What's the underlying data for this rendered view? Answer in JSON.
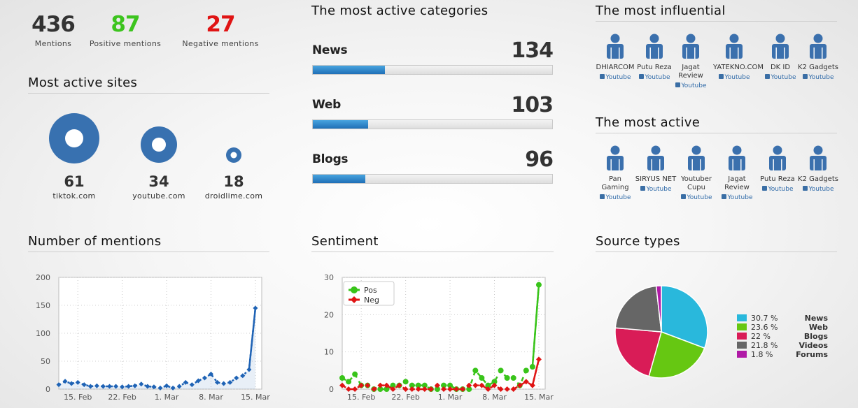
{
  "stats": [
    {
      "value": "436",
      "label": "Mentions",
      "color": "#333333"
    },
    {
      "value": "87",
      "label": "Positive mentions",
      "color": "#3cc41e"
    },
    {
      "value": "27",
      "label": "Negative mentions",
      "color": "#e01414"
    }
  ],
  "sites": {
    "title": "Most active sites",
    "items": [
      {
        "count": "61",
        "name": "tiktok.com"
      },
      {
        "count": "34",
        "name": "youtube.com"
      },
      {
        "count": "18",
        "name": "droidlime.com"
      }
    ]
  },
  "categories": {
    "title": "The most active categories",
    "items": [
      {
        "name": "News",
        "value": "134",
        "fill": 0.3
      },
      {
        "name": "Web",
        "value": "103",
        "fill": 0.23
      },
      {
        "name": "Blogs",
        "value": "96",
        "fill": 0.22
      }
    ]
  },
  "influential": {
    "title": "The most influential",
    "people": [
      {
        "name": "DHIARCOM",
        "source": "Youtube"
      },
      {
        "name": "Putu Reza",
        "source": "Youtube"
      },
      {
        "name": "Jagat Review",
        "source": "Youtube"
      },
      {
        "name": "YATEKNO.COM",
        "source": "Youtube"
      },
      {
        "name": "DK ID",
        "source": "Youtube"
      },
      {
        "name": "K2 Gadgets",
        "source": "Youtube"
      }
    ]
  },
  "most_active": {
    "title": "The most active",
    "people": [
      {
        "name": "Pan Gaming",
        "source": "Youtube"
      },
      {
        "name": "SIRYUS NET",
        "source": "Youtube"
      },
      {
        "name": "Youtuber Cupu",
        "source": "Youtube"
      },
      {
        "name": "Jagat Review",
        "source": "Youtube"
      },
      {
        "name": "Putu Reza",
        "source": "Youtube"
      },
      {
        "name": "K2 Gadgets",
        "source": "Youtube"
      }
    ]
  },
  "mentions_chart": {
    "title": "Number of mentions",
    "chart_data": {
      "type": "line",
      "x_ticks": [
        "15. Feb",
        "22. Feb",
        "1. Mar",
        "8. Mar",
        "15. Mar"
      ],
      "x_tick_days": [
        3,
        10,
        17,
        24,
        31
      ],
      "x_range": [
        0,
        32
      ],
      "y_ticks": [
        0,
        50,
        100,
        150,
        200
      ],
      "ylim": [
        0,
        200
      ],
      "series": [
        {
          "color": "#1f63b5",
          "x": [
            0,
            1,
            2,
            3,
            4,
            5,
            6,
            7,
            8,
            9,
            10,
            11,
            12,
            13,
            14,
            15,
            16,
            17,
            18,
            19,
            20,
            21,
            22,
            23,
            24,
            25,
            26,
            27,
            28,
            29,
            30,
            31
          ],
          "values": [
            8,
            14,
            10,
            12,
            8,
            5,
            6,
            5,
            5,
            5,
            4,
            5,
            6,
            9,
            5,
            4,
            2,
            6,
            2,
            5,
            12,
            8,
            15,
            20,
            27,
            12,
            10,
            12,
            20,
            24,
            35,
            145
          ]
        }
      ]
    }
  },
  "sentiment_chart": {
    "title": "Sentiment",
    "chart_data": {
      "type": "line",
      "x_ticks": [
        "15. Feb",
        "22. Feb",
        "1. Mar",
        "8. Mar",
        "15. Mar"
      ],
      "x_tick_days": [
        3,
        10,
        17,
        24,
        31
      ],
      "x_range": [
        0,
        32
      ],
      "y_ticks": [
        0,
        10,
        20,
        30
      ],
      "ylim": [
        0,
        30
      ],
      "legend_position": "top-left",
      "series": [
        {
          "name": "Pos",
          "color": "#39c41a",
          "x": [
            0,
            1,
            2,
            3,
            4,
            5,
            6,
            7,
            8,
            9,
            10,
            11,
            12,
            13,
            14,
            15,
            16,
            17,
            18,
            19,
            20,
            21,
            22,
            23,
            24,
            25,
            26,
            27,
            28,
            29,
            30,
            31
          ],
          "values": [
            3,
            2,
            4,
            1,
            1,
            0,
            0,
            0,
            1,
            1,
            2,
            1,
            1,
            1,
            0,
            0,
            1,
            1,
            0,
            0,
            0,
            5,
            3,
            1,
            2,
            5,
            3,
            3,
            1,
            5,
            6,
            28
          ]
        },
        {
          "name": "Neg",
          "color": "#e01414",
          "x": [
            0,
            1,
            2,
            3,
            4,
            5,
            6,
            7,
            8,
            9,
            10,
            11,
            12,
            13,
            14,
            15,
            16,
            17,
            18,
            19,
            20,
            21,
            22,
            23,
            24,
            25,
            26,
            27,
            28,
            29,
            30,
            31
          ],
          "values": [
            1,
            0,
            0,
            1,
            1,
            0,
            1,
            1,
            0,
            1,
            0,
            0,
            0,
            0,
            0,
            1,
            0,
            0,
            0,
            0,
            1,
            1,
            1,
            0,
            1,
            0,
            0,
            0,
            1,
            2,
            1,
            8
          ]
        }
      ]
    }
  },
  "source_types": {
    "title": "Source types",
    "chart_data": {
      "type": "pie",
      "slices": [
        {
          "label": "News",
          "pct_text": "30.7 %",
          "value": 30.7,
          "color": "#29b8dc"
        },
        {
          "label": "Web",
          "pct_text": "23.6 %",
          "value": 23.6,
          "color": "#66c712"
        },
        {
          "label": "Blogs",
          "pct_text": "22 %",
          "value": 22,
          "color": "#d91c57"
        },
        {
          "label": "Videos",
          "pct_text": "21.8 %",
          "value": 21.8,
          "color": "#666666"
        },
        {
          "label": "Forums",
          "pct_text": "1.8 %",
          "value": 1.8,
          "color": "#b01aa6"
        }
      ]
    }
  }
}
